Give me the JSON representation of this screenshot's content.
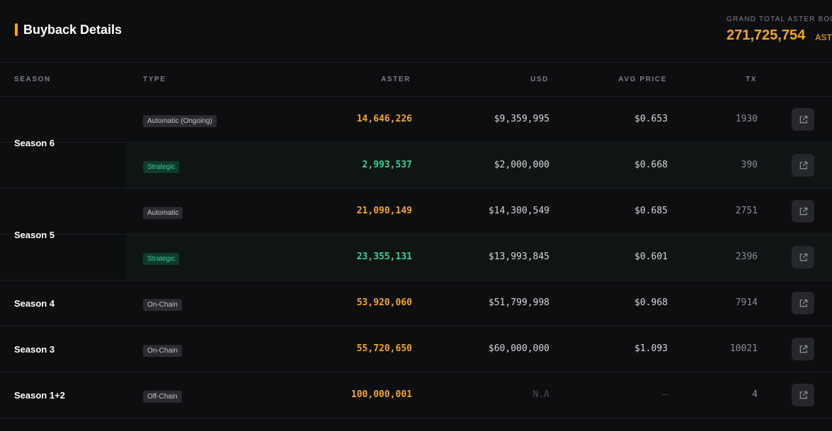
{
  "header": {
    "title": "Buyback Details",
    "grand_total_label": "GRAND TOTAL ASTER BOUGHT",
    "grand_total_value": "271,725,754",
    "grand_total_unit": "ASTER"
  },
  "columns": {
    "season": "SEASON",
    "type": "TYPE",
    "aster": "ASTER",
    "usd": "USD",
    "avg_price": "AVG PRICE",
    "tx": "TX"
  },
  "seasons": [
    "Season 6",
    "Season 5",
    "Season 4",
    "Season 3",
    "Season 1+2"
  ],
  "rows": [
    {
      "type": "Automatic (Ongoing)",
      "aster": "14,646,226",
      "usd": "$9,359,995",
      "avg_price": "$0.653",
      "tx": "1930"
    },
    {
      "type": "Strategic",
      "aster": "2,993,537",
      "usd": "$2,000,000",
      "avg_price": "$0.668",
      "tx": "390"
    },
    {
      "type": "Automatic",
      "aster": "21,090,149",
      "usd": "$14,300,549",
      "avg_price": "$0.685",
      "tx": "2751"
    },
    {
      "type": "Strategic",
      "aster": "23,355,131",
      "usd": "$13,993,845",
      "avg_price": "$0.601",
      "tx": "2396"
    },
    {
      "type": "On-Chain",
      "aster": "53,920,060",
      "usd": "$51,799,998",
      "avg_price": "$0.968",
      "tx": "7914"
    },
    {
      "type": "On-Chain",
      "aster": "55,720,650",
      "usd": "$60,000,000",
      "avg_price": "$1.093",
      "tx": "10021"
    },
    {
      "type": "Off-Chain",
      "aster": "100,000,001",
      "usd": "N.A",
      "avg_price": "—",
      "tx": "4"
    }
  ],
  "colors": {
    "accent": "#f5a623",
    "strategic_green": "#34d399",
    "background": "#0d0e10"
  },
  "icons": {
    "link_button": "external-link-icon"
  }
}
